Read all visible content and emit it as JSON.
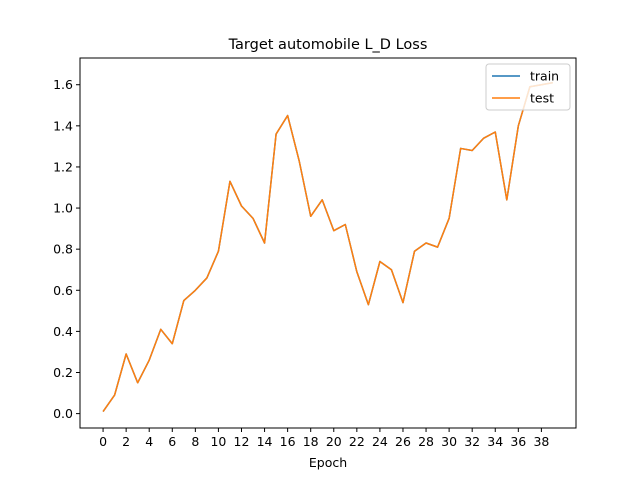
{
  "chart_data": {
    "type": "line",
    "title": "Target automobile L_D Loss",
    "xlabel": "Epoch",
    "ylabel": "",
    "xlim": [
      -2,
      41
    ],
    "ylim": [
      -0.07,
      1.73
    ],
    "xticks": [
      0,
      2,
      4,
      6,
      8,
      10,
      12,
      14,
      16,
      18,
      20,
      22,
      24,
      26,
      28,
      30,
      32,
      34,
      36,
      38
    ],
    "yticks": [
      0.0,
      0.2,
      0.4,
      0.6,
      0.8,
      1.0,
      1.2,
      1.4,
      1.6
    ],
    "legend_position": "top-right",
    "grid": false,
    "x": [
      0,
      1,
      2,
      3,
      4,
      5,
      6,
      7,
      8,
      9,
      10,
      11,
      12,
      13,
      14,
      15,
      16,
      17,
      18,
      19,
      20,
      21,
      22,
      23,
      24,
      25,
      26,
      27,
      28,
      29,
      30,
      31,
      32,
      33,
      34,
      35,
      36,
      37,
      38,
      39
    ],
    "series": [
      {
        "name": "train",
        "color": "#1f77b4",
        "values": [
          0.01,
          0.09,
          0.29,
          0.15,
          0.26,
          0.41,
          0.34,
          0.55,
          0.6,
          0.66,
          0.79,
          1.13,
          1.01,
          0.95,
          0.83,
          1.36,
          1.45,
          1.23,
          0.96,
          1.04,
          0.89,
          0.92,
          0.69,
          0.53,
          0.74,
          0.7,
          0.54,
          0.79,
          0.83,
          0.81,
          0.95,
          1.29,
          1.28,
          1.34,
          1.37,
          1.04,
          1.4,
          1.59,
          1.6,
          1.61
        ]
      },
      {
        "name": "test",
        "color": "#ff7f0e",
        "values": [
          0.01,
          0.09,
          0.29,
          0.15,
          0.26,
          0.41,
          0.34,
          0.55,
          0.6,
          0.66,
          0.79,
          1.13,
          1.01,
          0.95,
          0.83,
          1.36,
          1.45,
          1.23,
          0.96,
          1.04,
          0.89,
          0.92,
          0.69,
          0.53,
          0.74,
          0.7,
          0.54,
          0.79,
          0.83,
          0.81,
          0.95,
          1.29,
          1.28,
          1.34,
          1.37,
          1.04,
          1.4,
          1.59,
          1.6,
          1.61
        ]
      }
    ]
  }
}
